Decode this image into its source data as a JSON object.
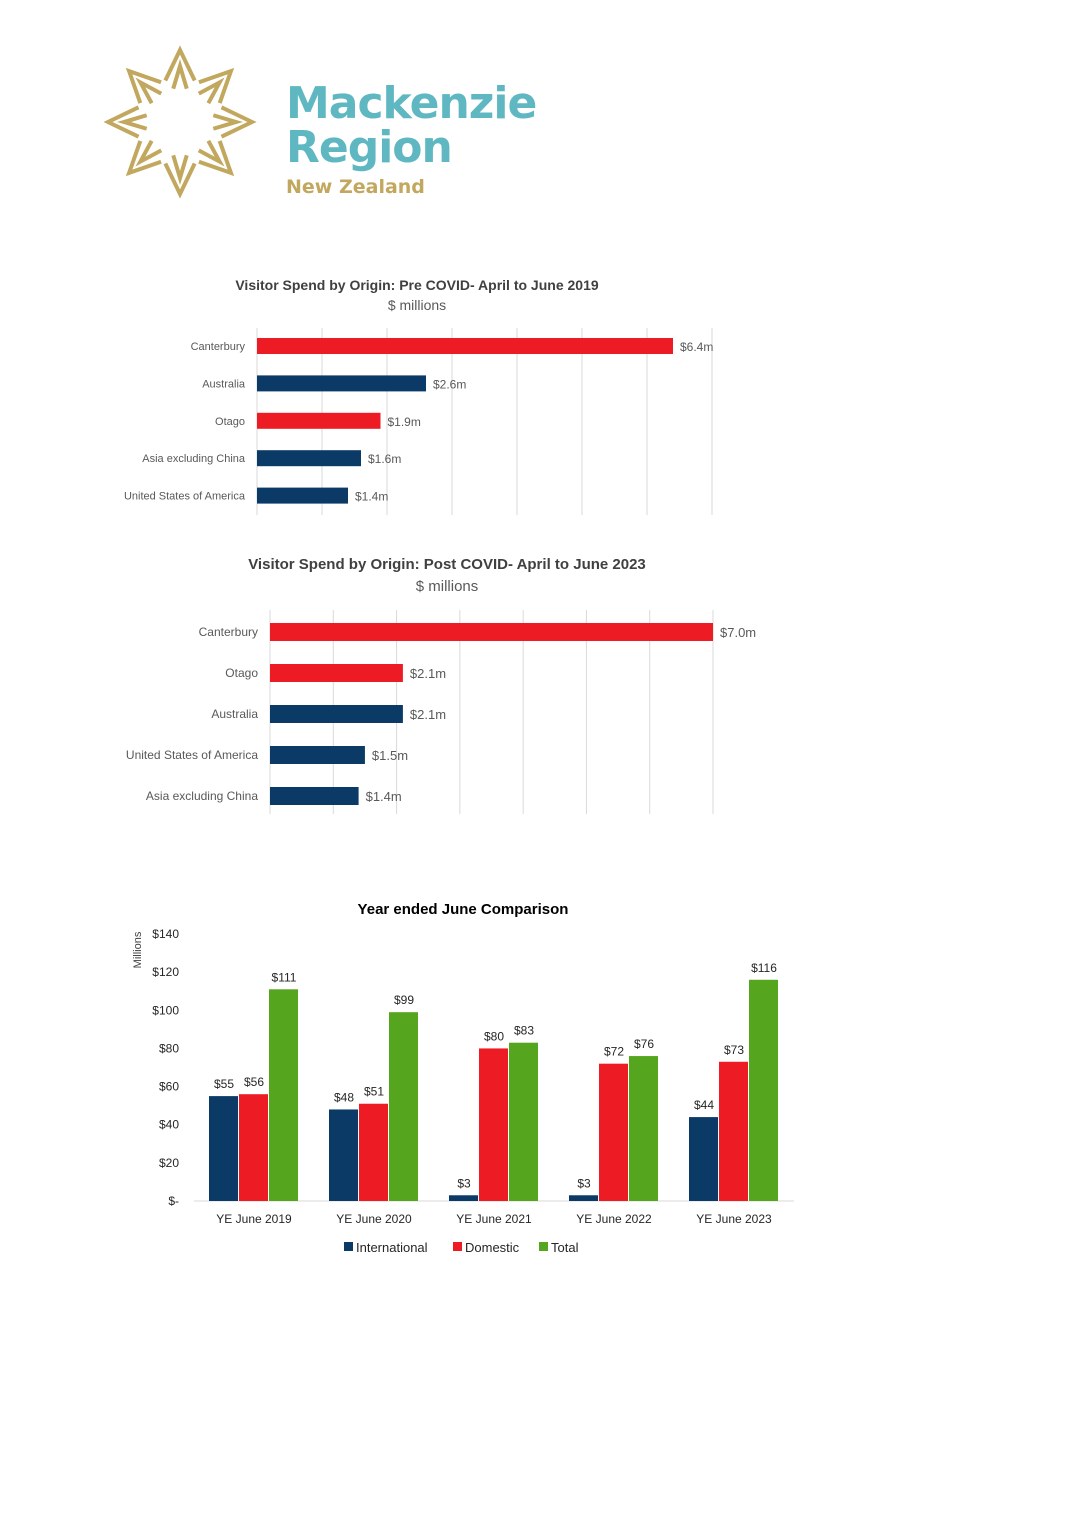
{
  "logo": {
    "line1": "Mackenzie",
    "line2": "Region",
    "line3": "New Zealand",
    "star_color": "#c2a75e",
    "text_color": "#5fb8c1"
  },
  "colors": {
    "international": "#0b3a66",
    "domestic": "#ed1c24",
    "total": "#56a51e",
    "grid": "#d9d9d9"
  },
  "chart_data": [
    {
      "type": "bar",
      "orientation": "horizontal",
      "title": "Visitor Spend by Origin: Pre COVID- April to June 2019",
      "subtitle": "$ millions",
      "categories": [
        "Canterbury",
        "Australia",
        "Otago",
        "Asia excluding China",
        "United States of America"
      ],
      "values": [
        6.4,
        2.6,
        1.9,
        1.6,
        1.4
      ],
      "labels": [
        "$6.4m",
        "$2.6m",
        "$1.9m",
        "$1.6m",
        "$1.4m"
      ],
      "kinds": [
        "domestic",
        "international",
        "domestic",
        "international",
        "international"
      ],
      "xlim": [
        0,
        7
      ]
    },
    {
      "type": "bar",
      "orientation": "horizontal",
      "title": "Visitor Spend by Origin: Post COVID- April to June 2023",
      "subtitle": "$ millions",
      "categories": [
        "Canterbury",
        "Otago",
        "Australia",
        "United States of America",
        "Asia excluding China"
      ],
      "values": [
        7.0,
        2.1,
        2.1,
        1.5,
        1.4
      ],
      "labels": [
        "$7.0m",
        "$2.1m",
        "$2.1m",
        "$1.5m",
        "$1.4m"
      ],
      "kinds": [
        "domestic",
        "domestic",
        "international",
        "international",
        "international"
      ],
      "xlim": [
        0,
        7
      ]
    },
    {
      "type": "bar",
      "title": "Year ended June Comparison",
      "ylabel": "Millions",
      "categories": [
        "YE June 2019",
        "YE June 2020",
        "YE June 2021",
        "YE June 2022",
        "YE June 2023"
      ],
      "series": [
        {
          "name": "International",
          "kind": "international",
          "values": [
            55,
            48,
            3,
            3,
            44
          ],
          "labels": [
            "$55",
            "$48",
            "$3",
            "$3",
            "$44"
          ]
        },
        {
          "name": "Domestic",
          "kind": "domestic",
          "values": [
            56,
            51,
            80,
            72,
            73
          ],
          "labels": [
            "$56",
            "$51",
            "$80",
            "$72",
            "$73"
          ]
        },
        {
          "name": "Total",
          "kind": "total",
          "values": [
            111,
            99,
            83,
            76,
            116
          ],
          "labels": [
            "$111",
            "$99",
            "$83",
            "$76",
            "$116"
          ]
        }
      ],
      "yticks": [
        "$-",
        "$20",
        "$40",
        "$60",
        "$80",
        "$100",
        "$120",
        "$140"
      ],
      "ylim": [
        0,
        140
      ],
      "legend": "bottom"
    }
  ]
}
